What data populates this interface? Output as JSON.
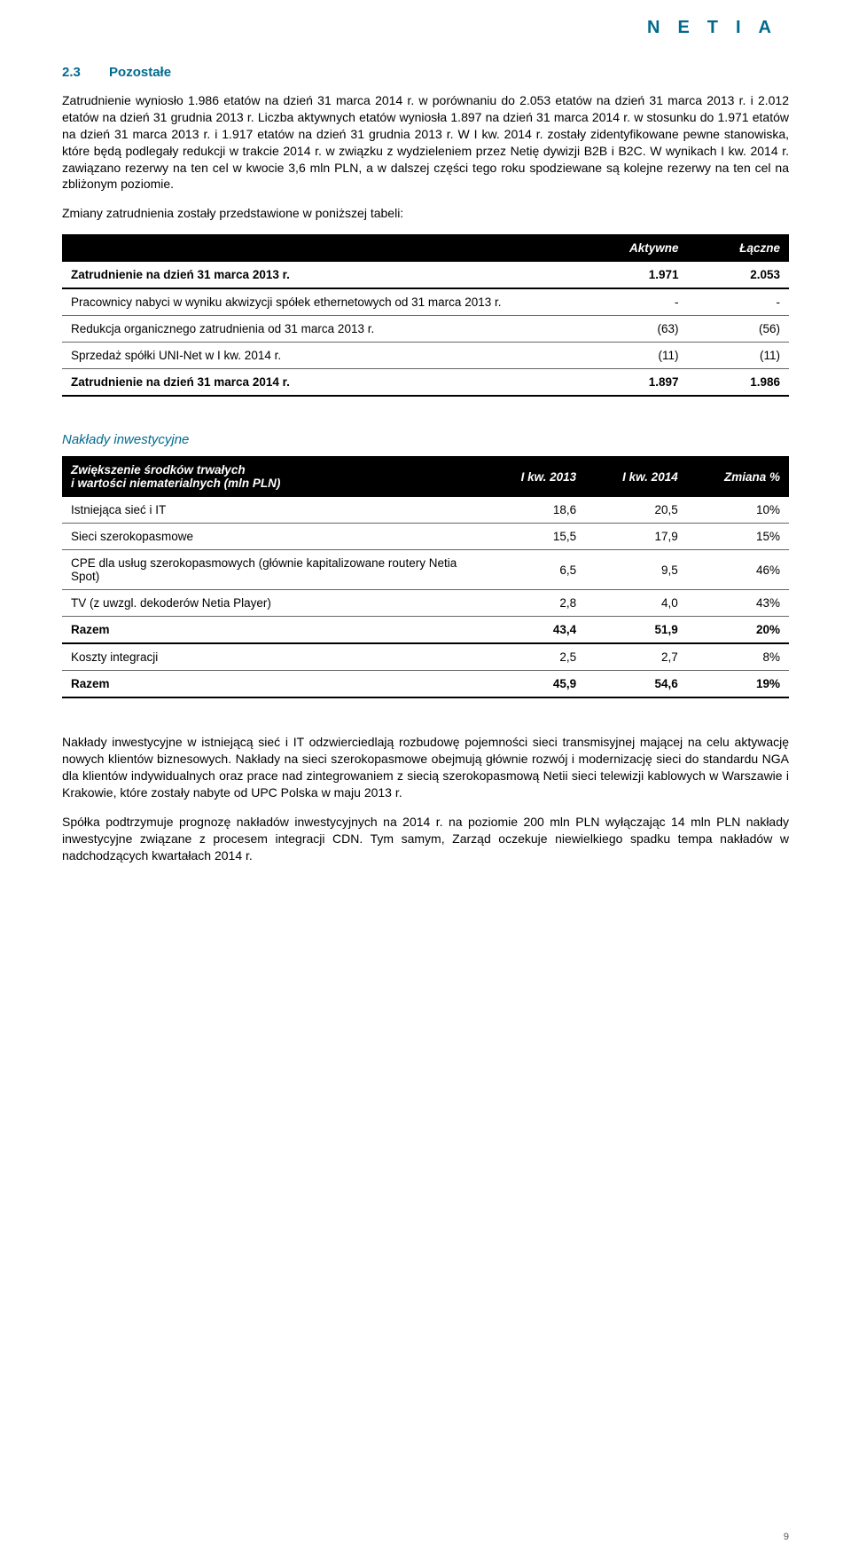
{
  "logo": "NETIA",
  "section": {
    "num": "2.3",
    "title": "Pozostałe"
  },
  "para1": "Zatrudnienie wyniosło 1.986 etatów na dzień 31 marca 2014 r. w porównaniu do 2.053 etatów na dzień 31 marca 2013 r. i 2.012 etatów na dzień 31 grudnia 2013 r. Liczba aktywnych etatów wyniosła 1.897 na dzień 31 marca 2014 r. w stosunku do 1.971 etatów na dzień 31 marca 2013 r. i 1.917 etatów na dzień 31 grudnia 2013 r. W I kw. 2014 r. zostały zidentyfikowane pewne stanowiska, które będą podlegały redukcji w trakcie 2014 r. w związku z wydzieleniem przez Netię dywizji B2B i B2C. W wynikach I kw. 2014 r. zawiązano rezerwy na ten cel w kwocie 3,6 mln PLN, a w dalszej części tego roku spodziewane są kolejne rezerwy na ten cel na zbliżonym poziomie.",
  "para2": "Zmiany zatrudnienia zostały przedstawione w poniższej tabeli:",
  "table1": {
    "columns": [
      "",
      "Aktywne",
      "Łączne"
    ],
    "rows": [
      {
        "label": "Zatrudnienie na dzień 31 marca 2013 r.",
        "c1": "1.971",
        "c2": "2.053",
        "bold": true
      },
      {
        "label": "Pracownicy nabyci w wyniku akwizycji spółek ethernetowych od 31 marca 2013 r.",
        "c1": "-",
        "c2": "-",
        "bold": false
      },
      {
        "label": "Redukcja organicznego zatrudnienia od 31 marca 2013 r.",
        "c1": "(63)",
        "c2": "(56)",
        "bold": false
      },
      {
        "label": "Sprzedaż spółki UNI-Net w I kw. 2014 r.",
        "c1": "(11)",
        "c2": "(11)",
        "bold": false
      },
      {
        "label": "Zatrudnienie na dzień 31 marca 2014 r.",
        "c1": "1.897",
        "c2": "1.986",
        "bold": true
      }
    ]
  },
  "subhead": "Nakłady inwestycyjne",
  "table2": {
    "header_label": "Zwiększenie środków trwałych\ni wartości niematerialnych (mln PLN)",
    "columns": [
      "I kw. 2013",
      "I kw. 2014",
      "Zmiana %"
    ],
    "rows": [
      {
        "label": "Istniejąca sieć i IT",
        "c1": "18,6",
        "c2": "20,5",
        "c3": "10%",
        "bold": false
      },
      {
        "label": "Sieci szerokopasmowe",
        "c1": "15,5",
        "c2": "17,9",
        "c3": "15%",
        "bold": false
      },
      {
        "label": "CPE dla usług szerokopasmowych (głównie kapitalizowane routery Netia Spot)",
        "c1": "6,5",
        "c2": "9,5",
        "c3": "46%",
        "bold": false
      },
      {
        "label": "TV (z uwzgl. dekoderów Netia Player)",
        "c1": "2,8",
        "c2": "4,0",
        "c3": "43%",
        "bold": false
      },
      {
        "label": "Razem",
        "c1": "43,4",
        "c2": "51,9",
        "c3": "20%",
        "bold": true
      },
      {
        "label": "Koszty integracji",
        "c1": "2,5",
        "c2": "2,7",
        "c3": "8%",
        "bold": false
      },
      {
        "label": "Razem",
        "c1": "45,9",
        "c2": "54,6",
        "c3": "19%",
        "bold": true
      }
    ]
  },
  "para3": "Nakłady inwestycyjne w istniejącą sieć i IT odzwierciedlają rozbudowę pojemności sieci transmisyjnej mającej na celu aktywację nowych klientów biznesowych. Nakłady na sieci szerokopasmowe obejmują głównie rozwój i modernizację sieci do standardu NGA dla klientów indywidualnych oraz prace nad zintegrowaniem z siecią szerokopasmową Netii sieci telewizji kablowych w Warszawie i Krakowie, które zostały nabyte od UPC Polska w maju 2013 r.",
  "para4": "Spółka podtrzymuje prognozę nakładów inwestycyjnych na 2014 r. na poziomie 200 mln PLN wyłączając 14 mln PLN nakłady inwestycyjne związane z procesem integracji CDN. Tym samym, Zarząd oczekuje niewielkiego spadku tempa nakładów w nadchodzących kwartałach 2014 r.",
  "pagenum": "9"
}
